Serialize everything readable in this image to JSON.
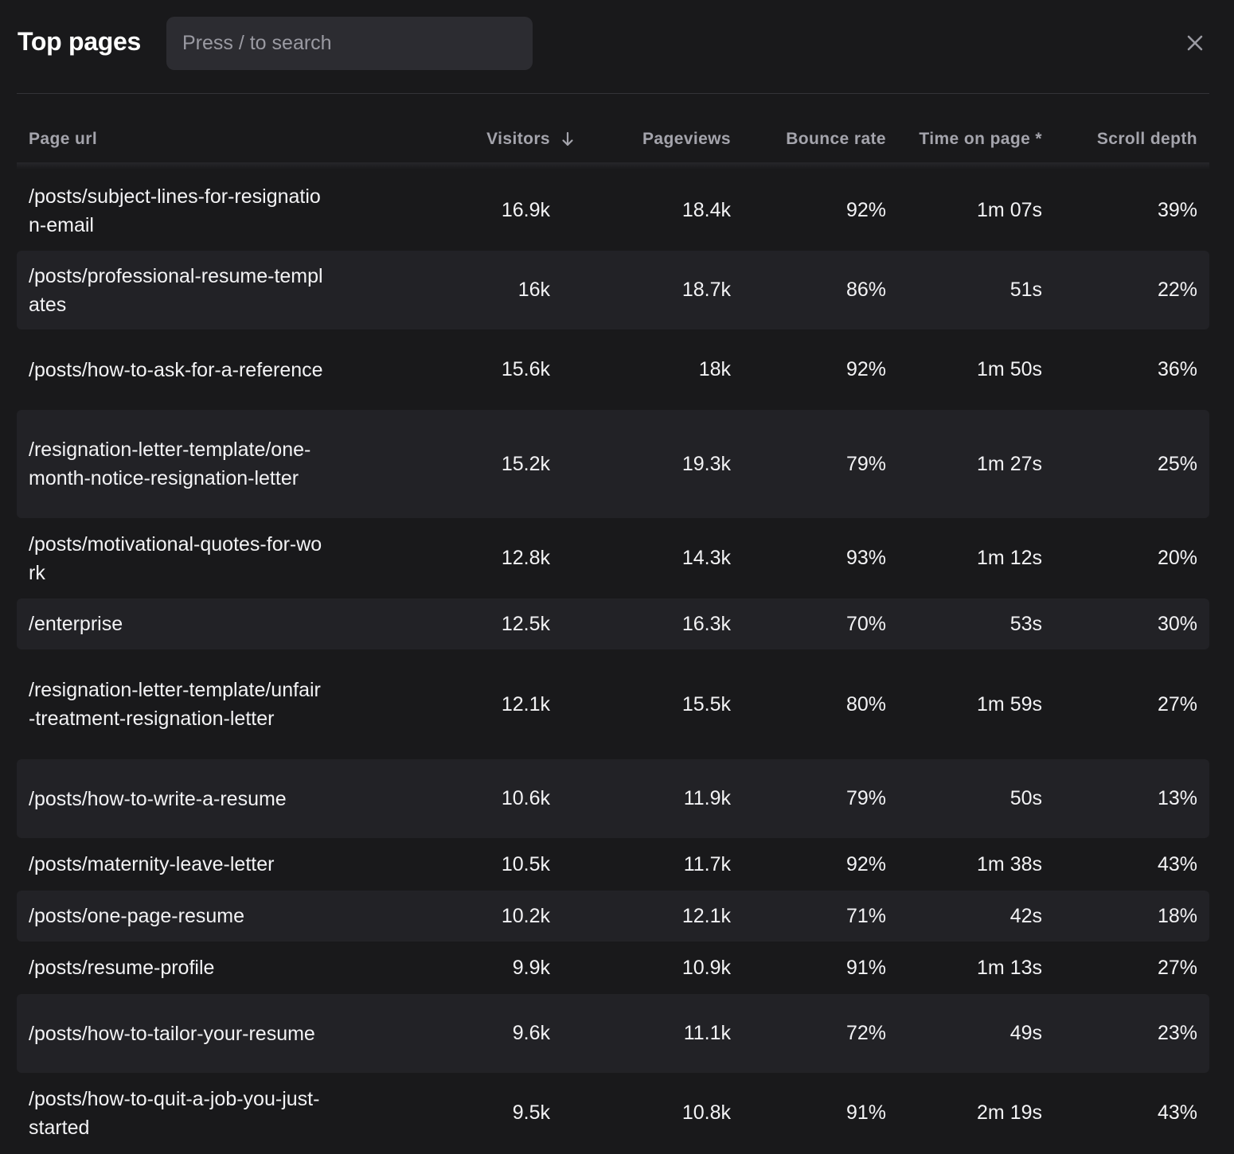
{
  "header": {
    "title": "Top pages",
    "search_placeholder": "Press / to search",
    "close_icon": "close-icon"
  },
  "table": {
    "columns": {
      "page_url": "Page url",
      "visitors": "Visitors",
      "pageviews": "Pageviews",
      "bounce_rate": "Bounce rate",
      "time_on_page": "Time on page *",
      "scroll_depth": "Scroll depth"
    },
    "sort_icon": "arrow-down-icon",
    "rows": [
      {
        "url": "/posts/subject-lines-for-resignation-email",
        "visitors": "16.9k",
        "pageviews": "18.4k",
        "bounce_rate": "92%",
        "time_on_page": "1m 07s",
        "scroll_depth": "39%"
      },
      {
        "url": "/posts/professional-resume-templates",
        "visitors": "16k",
        "pageviews": "18.7k",
        "bounce_rate": "86%",
        "time_on_page": "51s",
        "scroll_depth": "22%"
      },
      {
        "url": "/posts/how-to-ask-for-a-reference",
        "visitors": "15.6k",
        "pageviews": "18k",
        "bounce_rate": "92%",
        "time_on_page": "1m 50s",
        "scroll_depth": "36%"
      },
      {
        "url": "/resignation-letter-template/one-month-notice-resignation-letter",
        "visitors": "15.2k",
        "pageviews": "19.3k",
        "bounce_rate": "79%",
        "time_on_page": "1m 27s",
        "scroll_depth": "25%"
      },
      {
        "url": "/posts/motivational-quotes-for-work",
        "visitors": "12.8k",
        "pageviews": "14.3k",
        "bounce_rate": "93%",
        "time_on_page": "1m 12s",
        "scroll_depth": "20%"
      },
      {
        "url": "/enterprise",
        "visitors": "12.5k",
        "pageviews": "16.3k",
        "bounce_rate": "70%",
        "time_on_page": "53s",
        "scroll_depth": "30%"
      },
      {
        "url": "/resignation-letter-template/unfair-treatment-resignation-letter",
        "visitors": "12.1k",
        "pageviews": "15.5k",
        "bounce_rate": "80%",
        "time_on_page": "1m 59s",
        "scroll_depth": "27%"
      },
      {
        "url": "/posts/how-to-write-a-resume",
        "visitors": "10.6k",
        "pageviews": "11.9k",
        "bounce_rate": "79%",
        "time_on_page": "50s",
        "scroll_depth": "13%"
      },
      {
        "url": "/posts/maternity-leave-letter",
        "visitors": "10.5k",
        "pageviews": "11.7k",
        "bounce_rate": "92%",
        "time_on_page": "1m 38s",
        "scroll_depth": "43%"
      },
      {
        "url": "/posts/one-page-resume",
        "visitors": "10.2k",
        "pageviews": "12.1k",
        "bounce_rate": "71%",
        "time_on_page": "42s",
        "scroll_depth": "18%"
      },
      {
        "url": "/posts/resume-profile",
        "visitors": "9.9k",
        "pageviews": "10.9k",
        "bounce_rate": "91%",
        "time_on_page": "1m 13s",
        "scroll_depth": "27%"
      },
      {
        "url": "/posts/how-to-tailor-your-resume",
        "visitors": "9.6k",
        "pageviews": "11.1k",
        "bounce_rate": "72%",
        "time_on_page": "49s",
        "scroll_depth": "23%"
      },
      {
        "url": "/posts/how-to-quit-a-job-you-just-started",
        "visitors": "9.5k",
        "pageviews": "10.8k",
        "bounce_rate": "91%",
        "time_on_page": "2m 19s",
        "scroll_depth": "43%"
      }
    ]
  }
}
